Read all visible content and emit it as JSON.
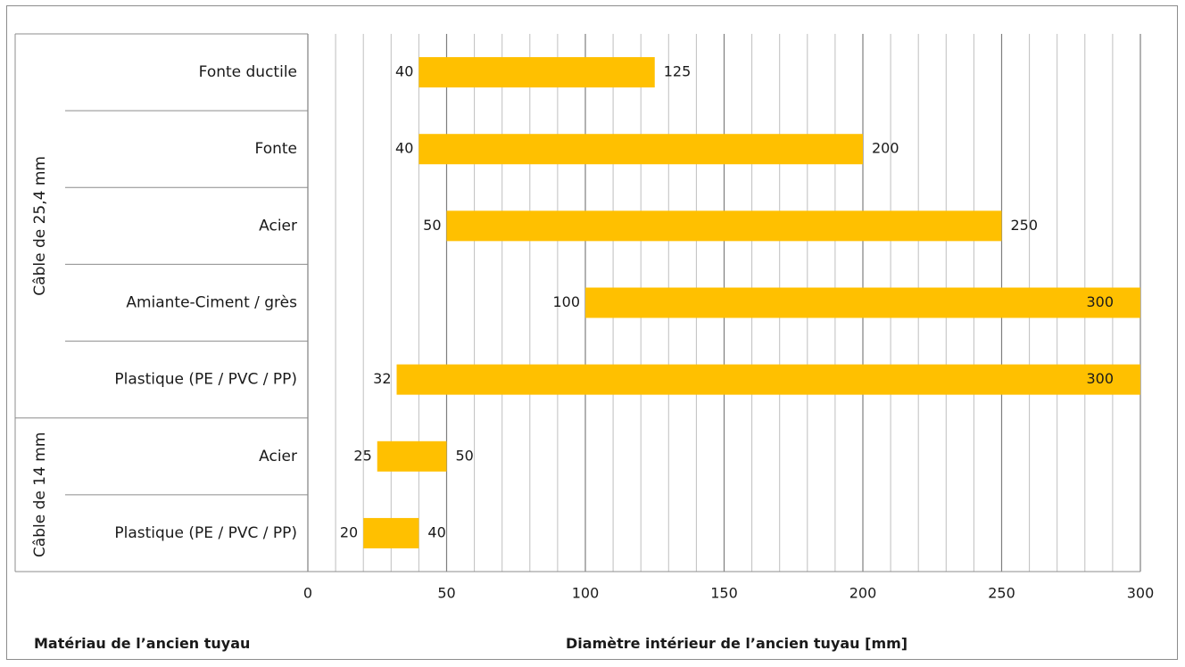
{
  "chart_data": {
    "type": "bar",
    "orientation": "horizontal",
    "subtype": "floating-range",
    "xlabel": "Diamètre intérieur de l’ancien tuyau  [mm]",
    "ylabel": "Matériau de l’ancien tuyau",
    "xlim": [
      0,
      300
    ],
    "xticks": [
      "0",
      "50",
      "100",
      "150",
      "200",
      "250",
      "300"
    ],
    "major_step": 50,
    "minor_step": 10,
    "grid": true,
    "bar_color": "#FFC000",
    "groups": [
      {
        "name": "Câble de 25,4 mm",
        "items": [
          {
            "category": "Fonte ductile",
            "min": 40,
            "max": 125,
            "min_label": "40",
            "max_label": "125"
          },
          {
            "category": "Fonte",
            "min": 40,
            "max": 200,
            "min_label": "40",
            "max_label": "200"
          },
          {
            "category": "Acier",
            "min": 50,
            "max": 250,
            "min_label": "50",
            "max_label": "250"
          },
          {
            "category": "Amiante-Ciment / grès",
            "min": 100,
            "max": 300,
            "min_label": "100",
            "max_label": "300"
          },
          {
            "category": "Plastique (PE / PVC / PP)",
            "min": 32,
            "max": 300,
            "min_label": "32",
            "max_label": "300"
          }
        ]
      },
      {
        "name": "Câble de 14 mm",
        "items": [
          {
            "category": "Acier",
            "min": 25,
            "max": 50,
            "min_label": "25",
            "max_label": "50"
          },
          {
            "category": "Plastique (PE / PVC / PP)",
            "min": 20,
            "max": 40,
            "min_label": "20",
            "max_label": "40"
          }
        ]
      }
    ]
  }
}
